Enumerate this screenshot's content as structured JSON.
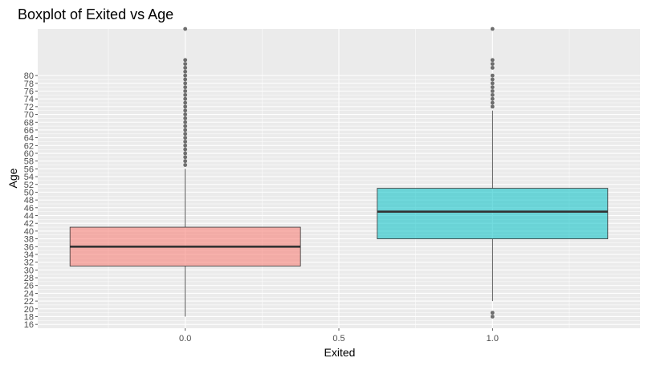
{
  "chart_data": {
    "type": "boxplot",
    "title": "Boxplot of Exited vs Age",
    "xlabel": "Exited",
    "ylabel": "Age",
    "x_ticks": [
      "0.0",
      "0.5",
      "1.0"
    ],
    "x_tick_values": [
      0,
      0.5,
      1
    ],
    "y_ticks": [
      16,
      18,
      20,
      22,
      24,
      26,
      28,
      30,
      32,
      34,
      36,
      38,
      40,
      42,
      44,
      46,
      48,
      50,
      52,
      54,
      56,
      58,
      60,
      62,
      64,
      66,
      68,
      70,
      72,
      74,
      76,
      78,
      80
    ],
    "xlim": [
      -0.48,
      1.48
    ],
    "ylim": [
      15,
      92
    ],
    "grid": true,
    "boxes": [
      {
        "x": 0,
        "q1": 31,
        "median": 36,
        "q3": 41,
        "whisker_low": 18,
        "whisker_high": 56,
        "fill": "#F8766D",
        "outliers": [
          92,
          84,
          83,
          82,
          81,
          80,
          79,
          78,
          77,
          76,
          75,
          74,
          73,
          72,
          71,
          70,
          69,
          68,
          67,
          66,
          65,
          64,
          63,
          62,
          61,
          60,
          59,
          58,
          57
        ]
      },
      {
        "x": 1,
        "q1": 38,
        "median": 45,
        "q3": 51,
        "whisker_low": 22,
        "whisker_high": 71,
        "fill": "#00BFC4",
        "outliers": [
          92,
          84,
          83,
          82,
          80,
          79,
          78,
          77,
          76,
          75,
          74,
          73,
          72,
          19,
          18
        ]
      }
    ],
    "colors": {
      "panel_bg": "#EBEBEB",
      "grid_major": "#FFFFFF",
      "box_outline": "#333333",
      "outlier": "#333333"
    }
  }
}
